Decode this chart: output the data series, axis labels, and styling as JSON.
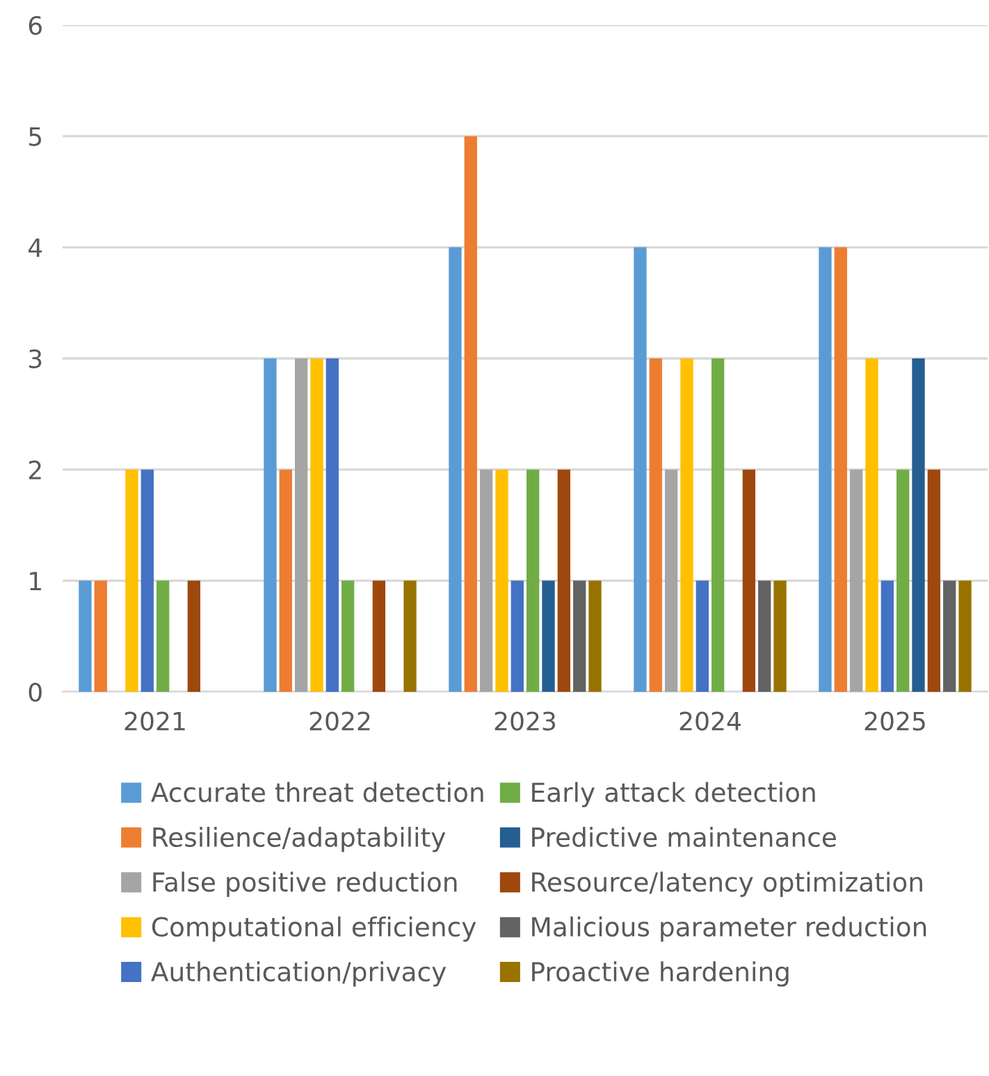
{
  "chart_data": {
    "type": "bar",
    "categories": [
      "2021",
      "2022",
      "2023",
      "2024",
      "2025"
    ],
    "series": [
      {
        "name": "Accurate threat detection",
        "color": "#5b9bd5",
        "values": [
          1,
          3,
          4,
          4,
          4
        ]
      },
      {
        "name": "Resilience/adaptability",
        "color": "#ed7d31",
        "values": [
          1,
          2,
          5,
          3,
          4
        ]
      },
      {
        "name": "False positive reduction",
        "color": "#a5a5a5",
        "values": [
          null,
          3,
          2,
          2,
          2
        ]
      },
      {
        "name": "Computational efficiency",
        "color": "#ffc000",
        "values": [
          2,
          3,
          2,
          3,
          3
        ]
      },
      {
        "name": "Authentication/privacy",
        "color": "#4472c4",
        "values": [
          2,
          3,
          1,
          1,
          1
        ]
      },
      {
        "name": "Early attack detection",
        "color": "#70ad47",
        "values": [
          1,
          1,
          2,
          3,
          2
        ]
      },
      {
        "name": "Predictive maintenance",
        "color": "#255e91",
        "values": [
          null,
          null,
          1,
          null,
          3
        ]
      },
      {
        "name": "Resource/latency optimization",
        "color": "#9e480e",
        "values": [
          1,
          1,
          2,
          2,
          2
        ]
      },
      {
        "name": "Malicious parameter reduction",
        "color": "#636363",
        "values": [
          null,
          null,
          1,
          1,
          1
        ]
      },
      {
        "name": "Proactive hardening",
        "color": "#997300",
        "values": [
          null,
          1,
          1,
          1,
          1
        ]
      }
    ],
    "ylim": [
      0,
      6
    ],
    "yticks": [
      0,
      1,
      2,
      3,
      4,
      5,
      6
    ],
    "grid": "y",
    "legend": "bottom"
  }
}
